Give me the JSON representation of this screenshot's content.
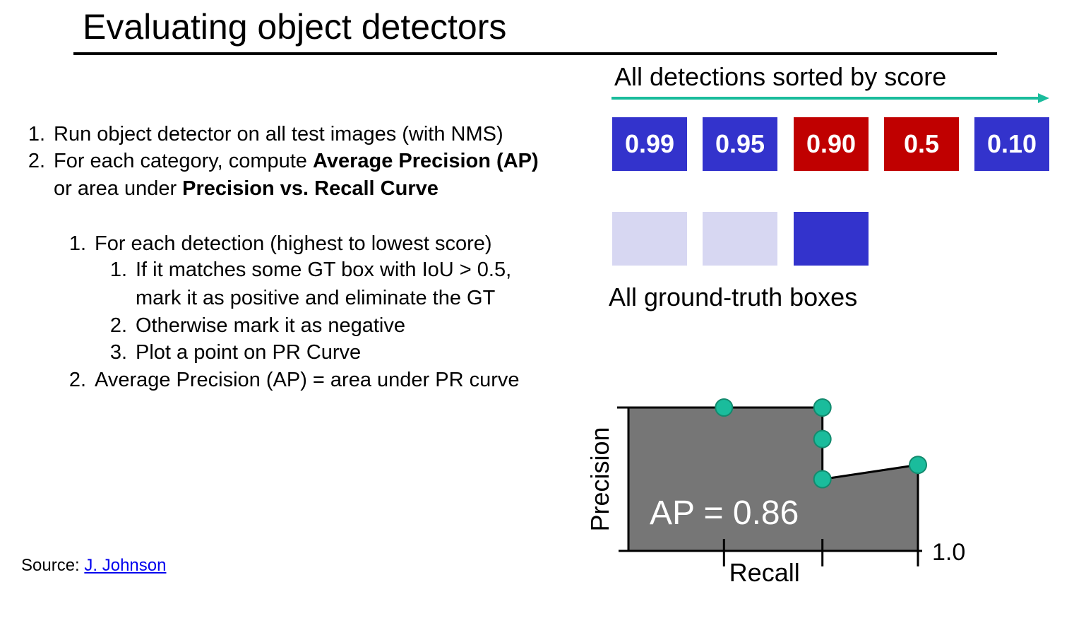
{
  "title": "Evaluating object detectors",
  "detections": {
    "caption": "All detections sorted by score",
    "boxes": [
      {
        "score": "0.99",
        "color": "#3333cc"
      },
      {
        "score": "0.95",
        "color": "#3333cc"
      },
      {
        "score": "0.90",
        "color": "#c00000"
      },
      {
        "score": "0.5",
        "color": "#c00000"
      },
      {
        "score": "0.10",
        "color": "#3333cc"
      }
    ],
    "arrow_color": "#1abc9c"
  },
  "ground_truth": {
    "caption": "All ground-truth boxes",
    "boxes": [
      {
        "color": "#d7d7f2"
      },
      {
        "color": "#d7d7f2"
      },
      {
        "color": "#3333cc"
      }
    ]
  },
  "steps": {
    "s1": {
      "num": "1.",
      "text": "Run object detector on all test images (with NMS)"
    },
    "s2": {
      "num": "2.",
      "pre": "For each category, compute ",
      "bold1": "Average Precision (AP)",
      "line2_pre": "or area under ",
      "bold2": "Precision vs. Recall Curve"
    },
    "sub1": {
      "num": "1.",
      "text": "For each detection (highest to lowest score)"
    },
    "subsub1": {
      "num": "1.",
      "line1": "If it matches some GT box with IoU > 0.5,",
      "line2": "mark it as positive and eliminate the GT"
    },
    "subsub2": {
      "num": "2.",
      "text": "Otherwise mark it as negative"
    },
    "subsub3": {
      "num": "3.",
      "text": "Plot a point on PR Curve"
    },
    "sub2": {
      "num": "2.",
      "text": "Average Precision (AP) = area under PR curve"
    }
  },
  "source": {
    "label": "Source: ",
    "link_text": "J. Johnson"
  },
  "chart_data": {
    "type": "area",
    "xlabel": "Recall",
    "ylabel": "Precision",
    "xlim": [
      0,
      1.0
    ],
    "ylim": [
      0,
      1.0
    ],
    "x_tick_labels": [
      "",
      "",
      "1.0"
    ],
    "annotation": "AP = 0.86",
    "fill_color": "#767676",
    "point_color": "#1abc9c",
    "points": [
      {
        "x": 0.33,
        "y": 1.0
      },
      {
        "x": 0.67,
        "y": 1.0
      },
      {
        "x": 0.67,
        "y": 0.78
      },
      {
        "x": 0.67,
        "y": 0.5
      },
      {
        "x": 1.0,
        "y": 0.6
      }
    ]
  }
}
